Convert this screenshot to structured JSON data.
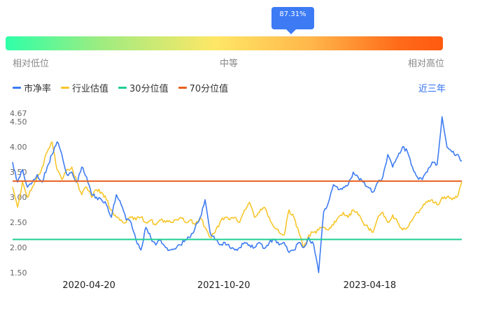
{
  "indicator": {
    "percentile_label": "87.31%",
    "percentile": 0.8731
  },
  "scale_labels": {
    "low": "相对低位",
    "mid": "中等",
    "high": "相对高位"
  },
  "legend": [
    {
      "name": "市净率",
      "color": "#3e7cf1"
    },
    {
      "name": "行业估值",
      "color": "#f7c62a"
    },
    {
      "name": "30分位值",
      "color": "#1ecf91"
    },
    {
      "name": "70分位值",
      "color": "#e8601f"
    }
  ],
  "range_link": "近三年",
  "colors": {
    "pb": "#3e7cf1",
    "industry": "#f7c62a",
    "p30": "#1ecf91",
    "p70": "#e8601f"
  },
  "chart_data": {
    "type": "line",
    "y_ticks": [
      "1.50",
      "2.00",
      "2.50",
      "3.00",
      "3.50",
      "4.00",
      "4.50",
      "4.67"
    ],
    "y_tick_values": [
      1.5,
      2.0,
      2.5,
      3.0,
      3.5,
      4.0,
      4.5,
      4.67
    ],
    "ylim": [
      1.5,
      4.67
    ],
    "x_labels": [
      "2020-04-20",
      "2021-10-20",
      "2023-04-18"
    ],
    "x_label_positions": [
      0.17,
      0.47,
      0.795
    ],
    "reference_lines": [
      {
        "name": "30分位值",
        "value": 2.16
      },
      {
        "name": "70分位值",
        "value": 3.32
      }
    ],
    "series": [
      {
        "name": "市净率",
        "values": [
          3.7,
          3.3,
          3.55,
          3.2,
          3.3,
          3.45,
          3.3,
          3.6,
          3.85,
          4.1,
          3.85,
          3.45,
          3.5,
          3.3,
          3.6,
          3.4,
          3.05,
          3.0,
          2.95,
          2.85,
          2.6,
          3.05,
          2.85,
          2.55,
          2.5,
          2.15,
          1.95,
          2.4,
          2.2,
          2.05,
          2.15,
          2.0,
          1.95,
          1.97,
          2.05,
          2.15,
          2.2,
          2.4,
          2.6,
          2.95,
          2.3,
          2.15,
          2.05,
          2.1,
          2.0,
          1.95,
          2.0,
          2.1,
          2.05,
          2.0,
          2.1,
          1.98,
          2.1,
          2.15,
          2.05,
          2.1,
          1.9,
          1.95,
          2.1,
          2.0,
          2.2,
          2.05,
          1.5,
          2.7,
          2.9,
          3.25,
          3.15,
          3.2,
          3.25,
          3.5,
          3.4,
          3.3,
          3.2,
          3.1,
          3.3,
          3.4,
          3.85,
          3.6,
          3.8,
          4.0,
          3.9,
          3.6,
          3.4,
          3.35,
          3.5,
          3.7,
          3.65,
          4.6,
          4.0,
          3.9,
          3.85,
          3.72
        ]
      },
      {
        "name": "行业估值",
        "values": [
          3.2,
          2.8,
          3.3,
          3.0,
          3.2,
          3.4,
          3.6,
          3.9,
          4.1,
          3.55,
          3.35,
          3.55,
          3.6,
          3.3,
          3.05,
          3.2,
          3.0,
          3.15,
          3.1,
          2.95,
          2.75,
          2.6,
          2.55,
          2.5,
          2.6,
          2.55,
          2.6,
          2.5,
          2.55,
          2.45,
          2.55,
          2.5,
          2.5,
          2.55,
          2.6,
          2.5,
          2.55,
          2.45,
          2.6,
          2.4,
          2.2,
          2.3,
          2.5,
          2.6,
          2.55,
          2.6,
          2.5,
          2.75,
          2.9,
          2.6,
          2.7,
          2.8,
          2.6,
          2.4,
          2.3,
          2.25,
          2.75,
          2.6,
          2.3,
          2.0,
          2.25,
          2.3,
          2.35,
          2.4,
          2.35,
          2.45,
          2.6,
          2.7,
          2.6,
          2.75,
          2.65,
          2.5,
          2.4,
          2.3,
          2.6,
          2.7,
          2.5,
          2.65,
          2.5,
          2.35,
          2.4,
          2.55,
          2.7,
          2.8,
          2.9,
          2.95,
          2.85,
          3.0,
          3.0,
          2.95,
          3.0,
          3.3
        ]
      }
    ]
  }
}
